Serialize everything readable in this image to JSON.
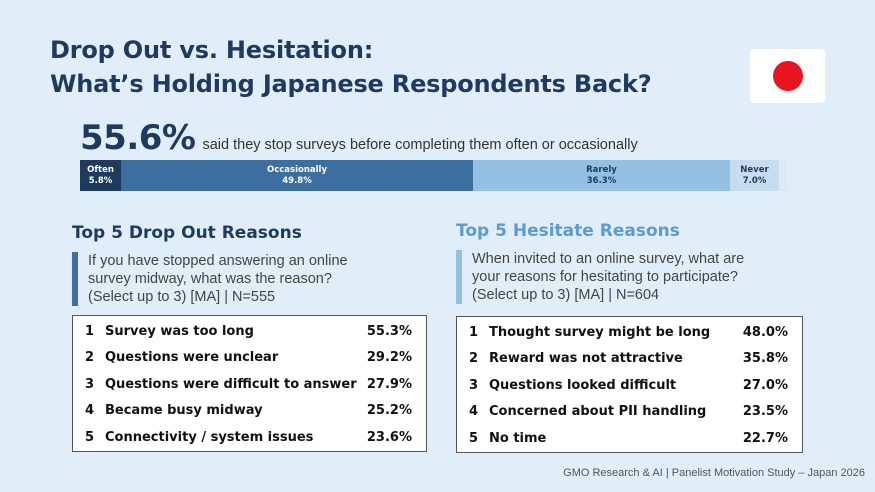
{
  "title": {
    "line1": "Drop Out vs. Hesitation:",
    "line2": "What’s Holding Japanese Respondents Back?"
  },
  "flag": {
    "icon": "japan-flag-icon",
    "background": "#ffffff",
    "sun_color": "#e8141f"
  },
  "headline": {
    "value": "55.6%",
    "text": "said they stop surveys before completing them often or occasionally"
  },
  "chart_data": {
    "type": "bar",
    "orientation": "horizontal-stacked",
    "categories": [
      "Often",
      "Occasionally",
      "Rarely",
      "Never"
    ],
    "values": [
      5.8,
      49.8,
      36.3,
      7.0
    ],
    "value_labels": [
      "5.8%",
      "49.8%",
      "36.3%",
      "7.0%"
    ],
    "colors": [
      "#1f3a5f",
      "#3c6e9f",
      "#93c0e3",
      "#c6dcef"
    ]
  },
  "dropout": {
    "title": "Top 5 Drop Out Reasons",
    "question_lines": [
      "If you have stopped answering an online",
      "survey midway, what was the reason?",
      "(Select up to 3) [MA] | N=555"
    ],
    "rows": [
      {
        "rank": "1",
        "label": "Survey was too long",
        "pct": "55.3%"
      },
      {
        "rank": "2",
        "label": "Questions were unclear",
        "pct": "29.2%"
      },
      {
        "rank": "3",
        "label": "Questions were difficult to answer",
        "pct": "27.9%"
      },
      {
        "rank": "4",
        "label": "Became busy midway",
        "pct": "25.2%"
      },
      {
        "rank": "5",
        "label": "Connectivity / system issues",
        "pct": "23.6%"
      }
    ]
  },
  "hesitate": {
    "title": "Top 5 Hesitate Reasons",
    "question_lines": [
      "When invited to an online survey, what are",
      "your reasons for hesitating to participate?",
      "(Select up to 3) [MA] | N=604"
    ],
    "rows": [
      {
        "rank": "1",
        "label": "Thought survey might be long",
        "pct": "48.0%"
      },
      {
        "rank": "2",
        "label": "Reward was not attractive",
        "pct": "35.8%"
      },
      {
        "rank": "3",
        "label": "Questions looked difficult",
        "pct": "27.0%"
      },
      {
        "rank": "4",
        "label": "Concerned about PII handling",
        "pct": "23.5%"
      },
      {
        "rank": "5",
        "label": "No time",
        "pct": "22.7%"
      }
    ]
  },
  "footer": "GMO Research & AI | Panelist Motivation Study – Japan 2026"
}
